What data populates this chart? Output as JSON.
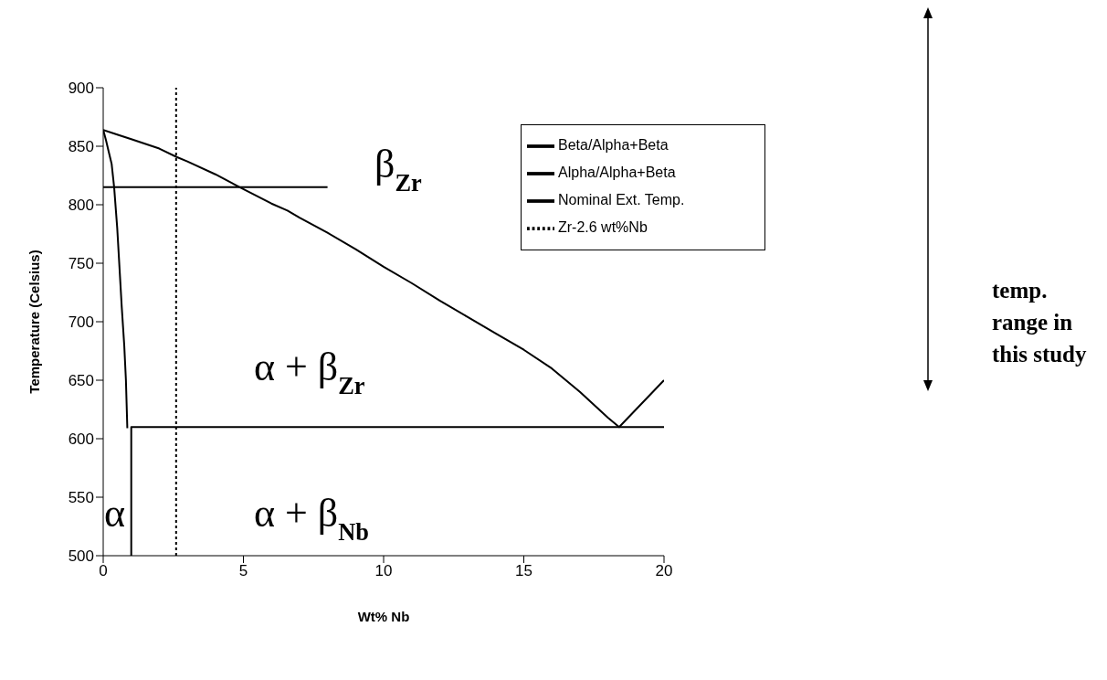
{
  "chart_data": {
    "type": "line",
    "xlabel": "Wt% Nb",
    "ylabel": "Temperature (Celsius)",
    "xlim": [
      0,
      20
    ],
    "xticks": [
      0,
      5,
      10,
      15,
      20
    ],
    "ylim": [
      500,
      900
    ],
    "yticks": [
      500,
      550,
      600,
      650,
      700,
      750,
      800,
      850,
      900
    ],
    "grid": false,
    "legend": "top right",
    "marker": "none",
    "series": [
      {
        "name": "Beta/Alpha+Beta",
        "color": "#000000",
        "x": [
          0,
          0.5,
          1,
          2,
          2.6,
          3,
          4,
          4.87,
          6,
          6.57,
          7,
          8,
          9,
          10,
          11,
          12,
          13,
          14,
          15,
          16,
          17,
          18,
          18.4,
          20
        ],
        "values": [
          864,
          860,
          856,
          848,
          841,
          837,
          826,
          815,
          801,
          795,
          789,
          776,
          762,
          747,
          733,
          718,
          704,
          690,
          676,
          660,
          640,
          618,
          610,
          650
        ]
      },
      {
        "name": "Alpha/Alpha+Beta",
        "color": "#000000",
        "x": [
          0,
          0.1,
          0.2,
          0.3,
          0.39,
          0.5,
          0.66,
          0.75,
          0.81,
          0.86
        ],
        "values": [
          864,
          855,
          845,
          835,
          815,
          780,
          713,
          680,
          650,
          609
        ]
      },
      {
        "name": "Nominal Ext. Temp.",
        "color": "#000000",
        "x": [
          0,
          8
        ],
        "values": [
          815,
          815
        ]
      },
      {
        "name": "Zr-2.6 wt%Nb",
        "color": "#000000",
        "line_style": "dotted",
        "x": [
          2.6,
          2.6
        ],
        "values": [
          500,
          900
        ]
      },
      {
        "color": "#000000",
        "x": [
          1,
          1,
          20
        ],
        "values": [
          500,
          610,
          610
        ]
      }
    ],
    "annotations": [
      "β$_{Zr}$",
      "α + β$_{Zr}$",
      "α",
      "α + β$_{Nb}$",
      "temp. range in this study"
    ]
  }
}
